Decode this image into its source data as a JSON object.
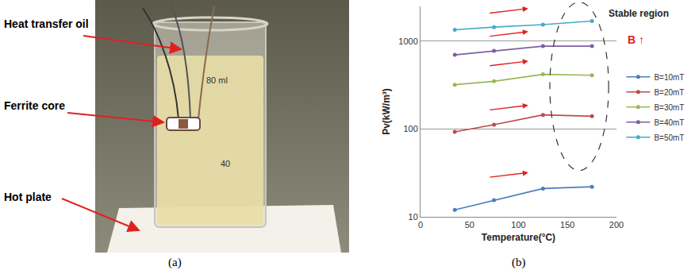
{
  "panels": {
    "a": {
      "label": "(a)",
      "annotations": [
        "Heat transfer oil",
        "Ferrite core",
        "Hot plate"
      ],
      "beaker_marks": [
        "80 ml",
        "40"
      ]
    },
    "b": {
      "label": "(b)"
    }
  },
  "chart_data": {
    "type": "line",
    "x_label": "Temperature(°C)",
    "y_label": "Pv(kW/m³)",
    "annotations": [
      "Stable region",
      "B ↑"
    ],
    "x": [
      35,
      75,
      125,
      175
    ],
    "series": [
      {
        "name": "B=10mT",
        "color": "#4a7ebb",
        "values": [
          12,
          15.5,
          21,
          22
        ]
      },
      {
        "name": "B=20mT",
        "color": "#be4b48",
        "values": [
          93,
          112,
          145,
          140
        ]
      },
      {
        "name": "B=30mT",
        "color": "#98b954",
        "values": [
          320,
          350,
          420,
          410
        ]
      },
      {
        "name": "B=40mT",
        "color": "#7d60a0",
        "values": [
          700,
          780,
          880,
          880
        ]
      },
      {
        "name": "B=50mT",
        "color": "#46aac5",
        "values": [
          1350,
          1450,
          1550,
          1700
        ]
      }
    ],
    "xlim": [
      0,
      200
    ],
    "xticks": [
      0,
      50,
      100,
      150,
      200
    ],
    "ylim": [
      10,
      2500
    ],
    "yticks": [
      10,
      100,
      1000
    ],
    "log": "y",
    "grid": true,
    "legend": "right",
    "marker": "circle"
  }
}
